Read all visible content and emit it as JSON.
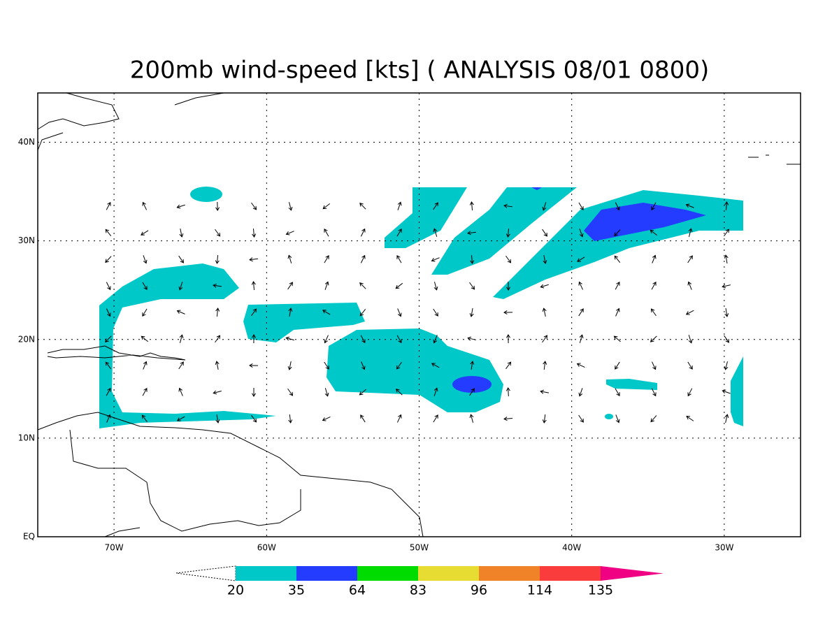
{
  "chart_data": {
    "type": "contour-map",
    "title": "200mb wind-speed [kts] ( ANALYSIS 08/01 0800)",
    "xlim": [
      -75,
      -25
    ],
    "ylim": [
      0,
      45
    ],
    "xticks": [
      {
        "value": -70,
        "label": "70W"
      },
      {
        "value": -60,
        "label": "60W"
      },
      {
        "value": -50,
        "label": "50W"
      },
      {
        "value": -40,
        "label": "40W"
      },
      {
        "value": -30,
        "label": "30W"
      }
    ],
    "yticks": [
      {
        "value": 0,
        "label": "EQ"
      },
      {
        "value": 10,
        "label": "10N"
      },
      {
        "value": 20,
        "label": "20N"
      },
      {
        "value": 30,
        "label": "30N"
      },
      {
        "value": 40,
        "label": "40N"
      }
    ],
    "grid": true,
    "colorbar": {
      "levels": [
        20,
        35,
        64,
        83,
        96,
        114,
        135
      ],
      "colors": [
        "#00c8c8",
        "#233cff",
        "#00dc00",
        "#e6dc32",
        "#f08228",
        "#fa3c3c",
        "#f00082"
      ]
    }
  }
}
